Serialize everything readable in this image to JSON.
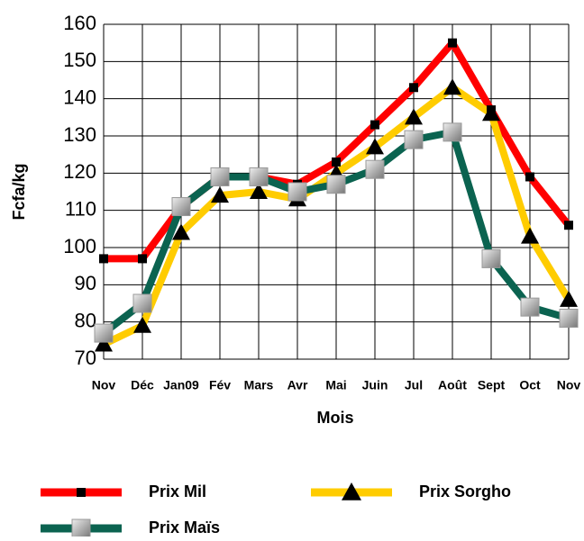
{
  "chart_data": {
    "type": "line",
    "x_label": "Mois",
    "y_label": "Fcfa/kg",
    "categories": [
      "Nov",
      "Déc",
      "Jan09",
      "Fév",
      "Mars",
      "Avr",
      "Mai",
      "Juin",
      "Jul",
      "Août",
      "Sept",
      "Oct",
      "Nov"
    ],
    "series": [
      {
        "name": "Prix Mil",
        "color": "#ff0000",
        "marker": "square",
        "values": [
          97,
          97,
          111,
          119,
          119,
          117,
          123,
          133,
          143,
          155,
          137,
          119,
          106
        ]
      },
      {
        "name": "Prix Sorgho",
        "color": "#ffcc00",
        "marker": "triangle",
        "values": [
          74,
          79,
          104,
          114,
          115,
          113,
          120,
          127,
          135,
          143,
          136,
          103,
          86
        ]
      },
      {
        "name": "Prix Maïs",
        "color": "#0b6350",
        "marker": "grey-square",
        "values": [
          77,
          85,
          111,
          119,
          119,
          115,
          117,
          121,
          129,
          131,
          97,
          84,
          81
        ]
      }
    ],
    "ylim": [
      70,
      160
    ],
    "yticks": [
      70,
      80,
      90,
      100,
      110,
      120,
      130,
      140,
      150,
      160
    ],
    "grid": true,
    "legend": "bottom"
  }
}
